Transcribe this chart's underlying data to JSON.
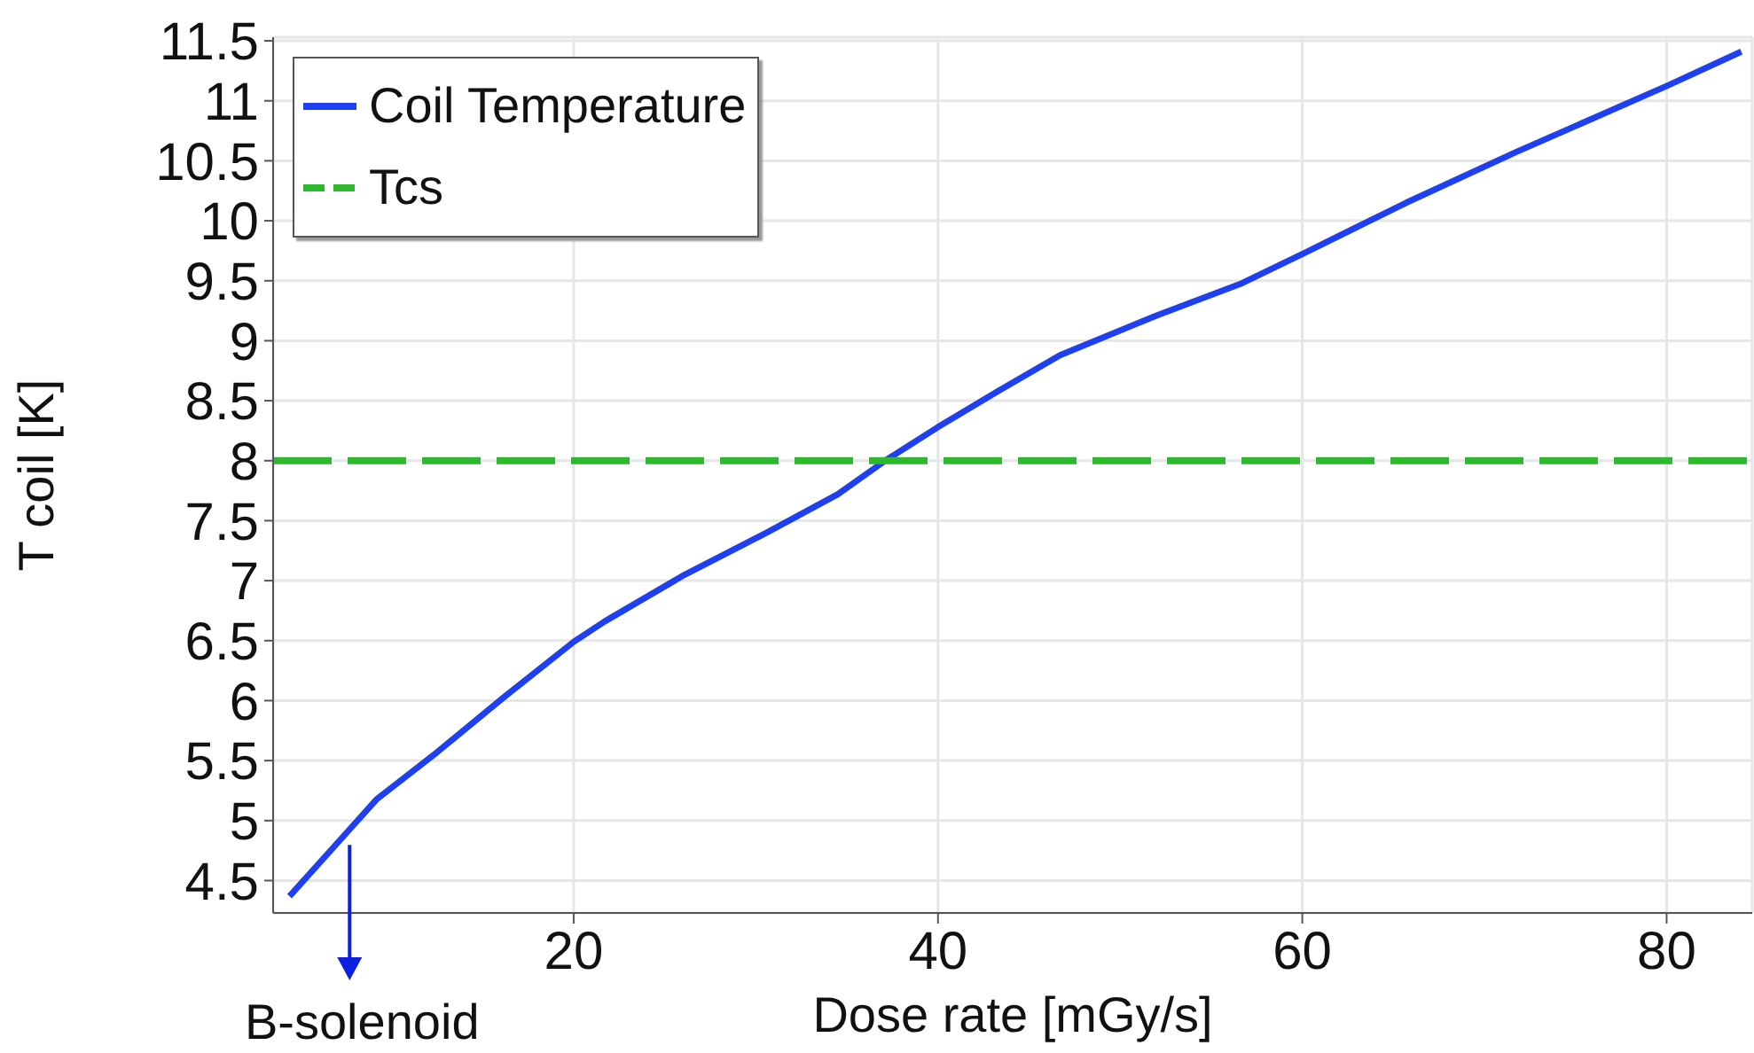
{
  "chart_data": {
    "type": "line",
    "xlabel": "Dose rate [mGy/s]",
    "ylabel": "T coil [K]",
    "series": [
      {
        "name": "Coil Temperature",
        "color": "#1f3ff2",
        "x": [
          4.4,
          7.6,
          9.2,
          12.5,
          16.1,
          20.0,
          21.7,
          26.1,
          30.6,
          34.5,
          37.1,
          40.0,
          43.3,
          46.7,
          52.0,
          56.7,
          60.1,
          65.7,
          71.7,
          80.1,
          84.1
        ],
        "values": [
          4.37,
          4.91,
          5.18,
          5.57,
          6.02,
          6.49,
          6.66,
          7.05,
          7.4,
          7.72,
          8.0,
          8.28,
          8.58,
          8.88,
          9.21,
          9.48,
          9.73,
          10.15,
          10.57,
          11.13,
          11.41
        ]
      },
      {
        "name": "Tcs",
        "color": "#2eb82e",
        "x": [
          3.5,
          84.7
        ],
        "values": [
          8,
          8
        ],
        "line_style": "dashed"
      }
    ],
    "xlim": [
      3.5,
      84.7
    ],
    "xticks": [
      20,
      40,
      60,
      80
    ],
    "ylim": [
      4.23,
      11.53
    ],
    "yticks": [
      4.5,
      5,
      5.5,
      6,
      6.5,
      7,
      7.5,
      8,
      8.5,
      9,
      9.5,
      10,
      10.5,
      11,
      11.5
    ],
    "grid": true,
    "legend": "top left",
    "annotations": [
      {
        "text": "B-solenoid",
        "x": 7.7,
        "y": 4.9
      }
    ]
  }
}
